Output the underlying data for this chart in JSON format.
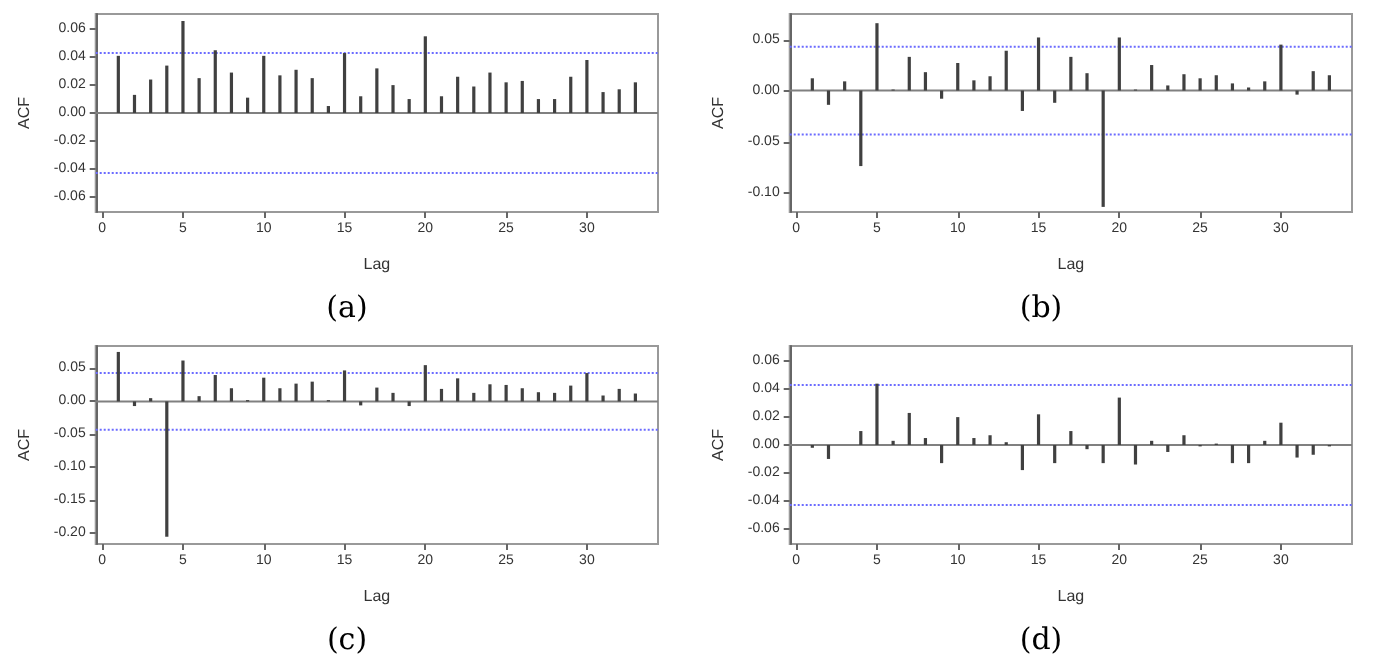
{
  "chart_data": [
    {
      "type": "bar",
      "title": "(a)",
      "xlabel": "Lag",
      "ylabel": "ACF",
      "color": "#404040",
      "grid": false,
      "x": [
        1,
        2,
        3,
        4,
        5,
        6,
        7,
        8,
        9,
        10,
        11,
        12,
        13,
        14,
        15,
        16,
        17,
        18,
        19,
        20,
        21,
        22,
        23,
        24,
        25,
        26,
        27,
        28,
        29,
        30,
        31,
        32,
        33
      ],
      "values": [
        0.041,
        0.013,
        0.024,
        0.034,
        0.066,
        0.025,
        0.045,
        0.029,
        0.011,
        0.041,
        0.027,
        0.031,
        0.025,
        0.005,
        0.043,
        0.012,
        0.032,
        0.02,
        0.01,
        0.055,
        0.012,
        0.026,
        0.019,
        0.029,
        0.022,
        0.023,
        0.01,
        0.01,
        0.026,
        0.038,
        0.015,
        0.017,
        0.022
      ],
      "xlim": [
        -0.4,
        34.4
      ],
      "xticks": [
        0,
        5,
        10,
        15,
        20,
        25,
        30
      ],
      "ylim": [
        -0.071,
        0.071
      ],
      "yticks": [
        -0.06,
        -0.04,
        -0.02,
        {
          "value": 0,
          "label": "0.00"
        },
        0.02,
        0.04,
        0.06
      ],
      "ref_lines": [
        {
          "axis": "y",
          "value": 0,
          "color": "#808080",
          "line_style": "solid"
        },
        {
          "axis": "y",
          "value": 0.043,
          "color": "#6b6bff",
          "line_style": "dotted"
        },
        {
          "axis": "y",
          "value": -0.043,
          "color": "#6b6bff",
          "line_style": "dotted"
        }
      ]
    },
    {
      "type": "bar",
      "title": "(b)",
      "xlabel": "Lag",
      "ylabel": "ACF",
      "color": "#404040",
      "grid": false,
      "x": [
        1,
        2,
        3,
        4,
        5,
        6,
        7,
        8,
        9,
        10,
        11,
        12,
        13,
        14,
        15,
        16,
        17,
        18,
        19,
        20,
        21,
        22,
        23,
        24,
        25,
        26,
        27,
        28,
        29,
        30,
        31,
        32,
        33
      ],
      "values": [
        0.012,
        -0.014,
        0.009,
        -0.074,
        0.066,
        0.001,
        0.033,
        0.018,
        -0.008,
        0.027,
        0.01,
        0.014,
        0.039,
        -0.02,
        0.052,
        -0.012,
        0.033,
        0.017,
        -0.114,
        0.052,
        0.001,
        0.025,
        0.005,
        0.016,
        0.012,
        0.015,
        0.007,
        0.003,
        0.009,
        0.045,
        -0.004,
        0.019,
        0.015
      ],
      "xlim": [
        -0.4,
        34.4
      ],
      "xticks": [
        0,
        5,
        10,
        15,
        20,
        25,
        30
      ],
      "ylim": [
        -0.119,
        0.075
      ],
      "yticks": [
        {
          "value": -0.1,
          "label": "-0.10"
        },
        -0.05,
        {
          "value": 0,
          "label": "0.00"
        },
        0.05
      ],
      "ref_lines": [
        {
          "axis": "y",
          "value": 0,
          "color": "#808080",
          "line_style": "solid"
        },
        {
          "axis": "y",
          "value": 0.043,
          "color": "#6b6bff",
          "line_style": "dotted"
        },
        {
          "axis": "y",
          "value": -0.043,
          "color": "#6b6bff",
          "line_style": "dotted"
        }
      ]
    },
    {
      "type": "bar",
      "title": "(c)",
      "xlabel": "Lag",
      "ylabel": "ACF",
      "color": "#404040",
      "grid": false,
      "x": [
        1,
        2,
        3,
        4,
        5,
        6,
        7,
        8,
        9,
        10,
        11,
        12,
        13,
        14,
        15,
        16,
        17,
        18,
        19,
        20,
        21,
        22,
        23,
        24,
        25,
        26,
        27,
        28,
        29,
        30,
        31,
        32,
        33
      ],
      "values": [
        0.075,
        -0.007,
        0.005,
        -0.205,
        0.062,
        0.008,
        0.04,
        0.02,
        0.002,
        0.036,
        0.02,
        0.027,
        0.03,
        0.002,
        0.047,
        -0.006,
        0.021,
        0.013,
        -0.007,
        0.055,
        0.019,
        0.035,
        0.013,
        0.026,
        0.025,
        0.02,
        0.014,
        0.013,
        0.024,
        0.043,
        0.009,
        0.019,
        0.012
      ],
      "xlim": [
        -0.4,
        34.4
      ],
      "xticks": [
        0,
        5,
        10,
        15,
        20,
        25,
        30
      ],
      "ylim": [
        -0.216,
        0.084
      ],
      "yticks": [
        {
          "value": -0.2,
          "label": "-0.20"
        },
        -0.15,
        {
          "value": -0.1,
          "label": "-0.10"
        },
        -0.05,
        {
          "value": 0,
          "label": "0.00"
        },
        0.05
      ],
      "ref_lines": [
        {
          "axis": "y",
          "value": 0,
          "color": "#808080",
          "line_style": "solid"
        },
        {
          "axis": "y",
          "value": 0.043,
          "color": "#6b6bff",
          "line_style": "dotted"
        },
        {
          "axis": "y",
          "value": -0.043,
          "color": "#6b6bff",
          "line_style": "dotted"
        }
      ]
    },
    {
      "type": "bar",
      "title": "(d)",
      "xlabel": "Lag",
      "ylabel": "ACF",
      "color": "#404040",
      "grid": false,
      "x": [
        1,
        2,
        3,
        4,
        5,
        6,
        7,
        8,
        9,
        10,
        11,
        12,
        13,
        14,
        15,
        16,
        17,
        18,
        19,
        20,
        21,
        22,
        23,
        24,
        25,
        26,
        27,
        28,
        29,
        30,
        31,
        32,
        33
      ],
      "values": [
        -0.002,
        -0.01,
        0.0,
        0.01,
        0.044,
        0.003,
        0.023,
        0.005,
        -0.013,
        0.02,
        0.005,
        0.007,
        0.002,
        -0.018,
        0.022,
        -0.013,
        0.01,
        -0.003,
        -0.013,
        0.034,
        -0.014,
        0.003,
        -0.005,
        0.007,
        -0.001,
        0.001,
        -0.013,
        -0.013,
        0.003,
        0.016,
        -0.009,
        -0.007,
        -0.001
      ],
      "xlim": [
        -0.4,
        34.4
      ],
      "xticks": [
        0,
        5,
        10,
        15,
        20,
        25,
        30
      ],
      "ylim": [
        -0.071,
        0.071
      ],
      "yticks": [
        -0.06,
        -0.04,
        -0.02,
        {
          "value": 0,
          "label": "0.00"
        },
        0.02,
        0.04,
        0.06
      ],
      "ref_lines": [
        {
          "axis": "y",
          "value": 0,
          "color": "#808080",
          "line_style": "solid"
        },
        {
          "axis": "y",
          "value": 0.043,
          "color": "#6b6bff",
          "line_style": "dotted"
        },
        {
          "axis": "y",
          "value": -0.043,
          "color": "#6b6bff",
          "line_style": "dotted"
        }
      ]
    }
  ]
}
